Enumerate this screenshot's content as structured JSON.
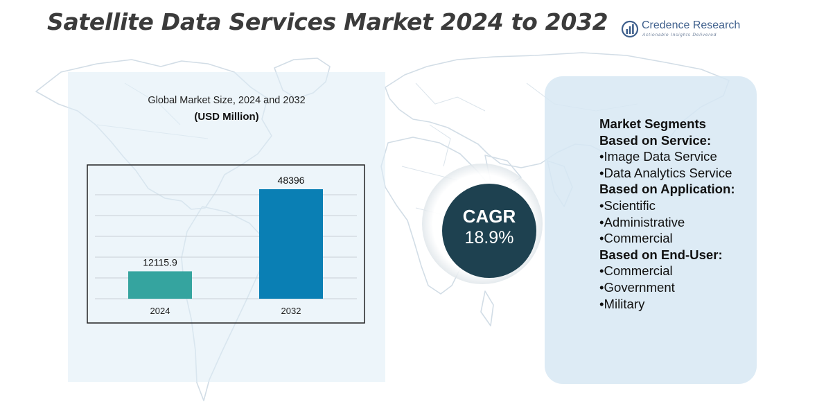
{
  "title": "Satellite Data Services Market 2024 to 2032",
  "brand": {
    "name": "Credence Research",
    "tagline": "Actionable Insights Delivered"
  },
  "chart_heading": "Global Market Size, 2024 and 2032",
  "chart_unit": "(USD Million)",
  "chart_data": {
    "type": "bar",
    "title": "Global Market Size, 2024 and 2032",
    "ylabel": "(USD Million)",
    "categories": [
      "2024",
      "2032"
    ],
    "values": [
      12115.9,
      48396
    ],
    "value_labels": [
      "12115.9",
      "48396"
    ],
    "colors": [
      "#35a49f",
      "#0a7fb4"
    ],
    "ylim": [
      0,
      60000
    ],
    "grid": true,
    "legend": "none"
  },
  "cagr": {
    "label": "CAGR",
    "value": "18.9%"
  },
  "segments": [
    {
      "text": "Market Segments",
      "kind": "head"
    },
    {
      "text": "Based on Service:",
      "kind": "head"
    },
    {
      "text": "•Image Data Service",
      "kind": "item"
    },
    {
      "text": "•Data Analytics Service",
      "kind": "item-wrap"
    },
    {
      "text": "Based on Application:",
      "kind": "head"
    },
    {
      "text": "•Scientific",
      "kind": "item"
    },
    {
      "text": "•Administrative",
      "kind": "item"
    },
    {
      "text": "•Commercial",
      "kind": "item"
    },
    {
      "text": "Based on End-User:",
      "kind": "head"
    },
    {
      "text": "•Commercial",
      "kind": "item"
    },
    {
      "text": "•Government",
      "kind": "item"
    },
    {
      "text": "•Military",
      "kind": "item"
    }
  ]
}
